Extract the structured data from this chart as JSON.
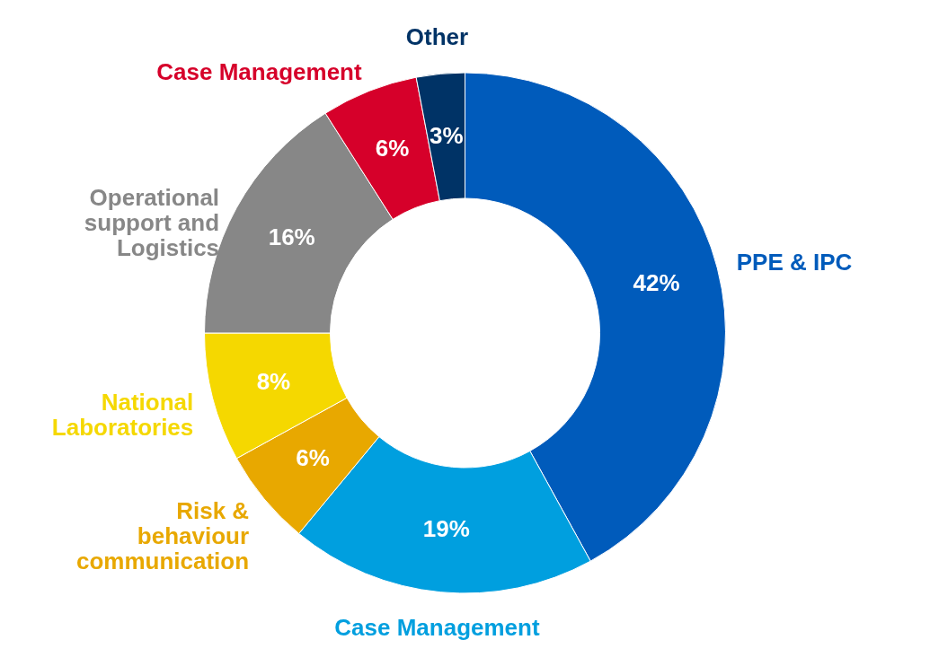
{
  "chart_data": {
    "type": "donut",
    "categories": [
      "PPE & IPC",
      "Case Management",
      "Risk &\nbehaviour\ncommunication",
      "National\nLaboratories",
      "Operational\nsupport and\nLogistics",
      "Case Management",
      "Other"
    ],
    "values": [
      42,
      19,
      6,
      8,
      16,
      6,
      3
    ],
    "value_labels": [
      "42%",
      "19%",
      "6%",
      "8%",
      "16%",
      "6%",
      "3%"
    ],
    "colors": [
      "#005bbb",
      "#009fdf",
      "#e8a800",
      "#f5d800",
      "#878787",
      "#d6002a",
      "#003366"
    ],
    "legend": false
  }
}
